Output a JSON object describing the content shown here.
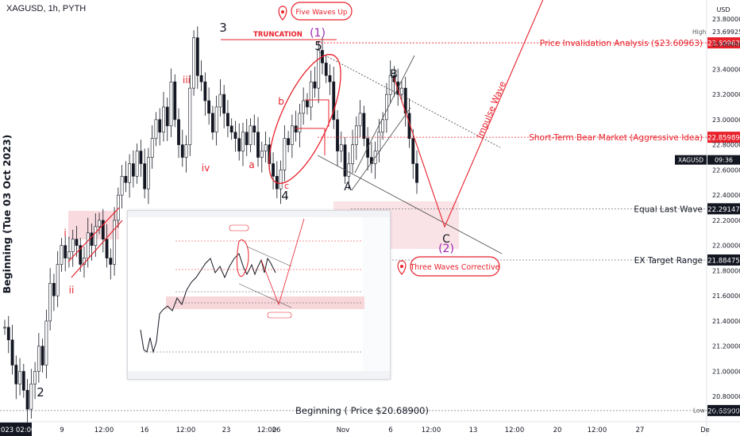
{
  "header": {
    "symbol": "XAGUSD, 1h, PYTH"
  },
  "price_axis": {
    "currency": "USD",
    "ticks": [
      "23.80000",
      "23.60000",
      "23.40000",
      "23.20000",
      "23.00000",
      "22.80000",
      "22.60000",
      "22.40000",
      "22.20000",
      "22.00000",
      "21.80000",
      "21.60000",
      "21.40000",
      "21.20000",
      "21.00000",
      "20.80000"
    ],
    "high_label": "High",
    "high_value": "23.69925",
    "low_label": "Low",
    "low_value": "20.69225",
    "current_symbol": "XAGUSD",
    "current_time": "09:36"
  },
  "time_axis": {
    "first_label": "2023  02:00",
    "ticks": [
      "9",
      "12:00",
      "16",
      "12:00",
      "23",
      "12:00",
      "26",
      "Nov",
      "6",
      "12:00",
      "13",
      "12:00",
      "20",
      "12:00",
      "27",
      "De"
    ]
  },
  "levels": [
    {
      "label": "Price Invalidation Analysis ($23.60963)",
      "value": "23.60963",
      "price": 23.60963,
      "color": "#e8212b"
    },
    {
      "label": "Short-Term Bear Market (Aggressive Idea)",
      "value": "22.85989",
      "price": 22.85989,
      "color": "#e8212b"
    },
    {
      "label": "Equal Last Wave",
      "value": "22.29147",
      "price": 22.29147,
      "color": "#131722"
    },
    {
      "label": "EX Target Range",
      "value": "21.88475",
      "price": 21.88475,
      "color": "#131722"
    }
  ],
  "beginning": {
    "label": "Beginning ( Price $20.68900)",
    "value": "20.68900",
    "price": 20.689
  },
  "side_label": "Beginning (Tue 03 Oct 2023)",
  "callouts": {
    "top": "Five Waves Up",
    "bottom": "Three Waves Corrective",
    "truncation": "TRUNCATION",
    "impulse": "Impulse Wave"
  },
  "wave_labels": {
    "w3": "3",
    "w5": "5",
    "w4": "4",
    "w2": "2",
    "w1_paren": "(1)",
    "w2_paren": "(2)",
    "A": "A",
    "B": "B",
    "C": "C",
    "i": "i",
    "ii": "ii",
    "iii": "iii",
    "iv": "iv",
    "a": "a",
    "b": "b",
    "c": "c"
  },
  "colors": {
    "red": "#e8212b",
    "purple": "#9c27b0",
    "candle": "#131722",
    "zone": "#f8d7db"
  },
  "chart_data": {
    "type": "candlestick",
    "symbol": "XAGUSD",
    "timeframe": "1h",
    "ylim": [
      20.6,
      23.95
    ],
    "series": [
      {
        "values": [
          21.35,
          21.25,
          21.05,
          20.9,
          21.0,
          20.85,
          20.7,
          20.9,
          21.0,
          21.2,
          21.05,
          21.4,
          21.7,
          21.6,
          21.85,
          22.0,
          21.9,
          21.95,
          22.05,
          22.0,
          21.85,
          21.9,
          22.1,
          22.0,
          22.15,
          22.2,
          22.05,
          21.9,
          21.85,
          22.2,
          22.4,
          22.55,
          22.5,
          22.65,
          22.55,
          22.75,
          22.65,
          22.45,
          22.7,
          22.85,
          23.0,
          22.9,
          23.1,
          22.95,
          23.3,
          23.0,
          22.8,
          22.7,
          22.8,
          23.25,
          23.65,
          23.35,
          23.3,
          23.15,
          23.05,
          22.9,
          23.1,
          23.2,
          23.05,
          22.95,
          22.9,
          22.85,
          22.75,
          22.9,
          22.8,
          22.95,
          22.9,
          22.7,
          22.75,
          22.8,
          22.65,
          22.55,
          22.45,
          22.6,
          22.85,
          22.8,
          22.95,
          22.9,
          23.05,
          23.15,
          23.1,
          23.3,
          23.25,
          23.55,
          23.45,
          23.35,
          23.3,
          23.0,
          22.75,
          22.8,
          22.55,
          22.65,
          22.8,
          22.95,
          23.05,
          22.85,
          22.7,
          22.65,
          22.75,
          22.9,
          23.0,
          23.2,
          23.35,
          23.3,
          23.2,
          23.25,
          23.05,
          22.85,
          22.65,
          22.5
        ]
      }
    ]
  }
}
